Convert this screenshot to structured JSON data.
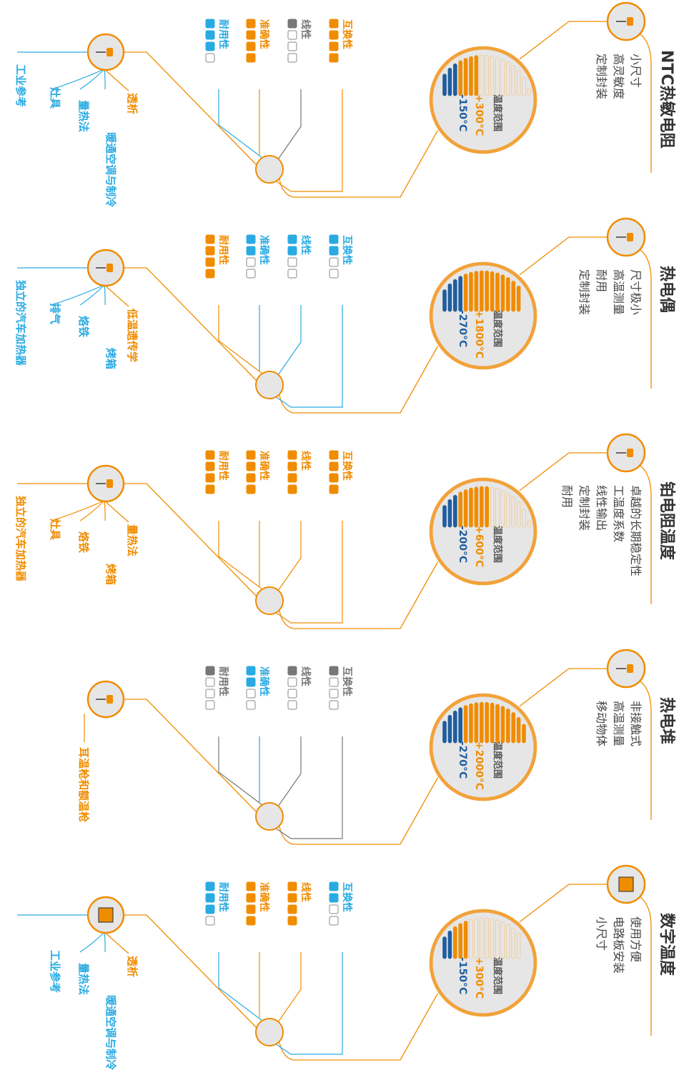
{
  "colors": {
    "orange": "#F08C00",
    "blue": "#29ABE2",
    "dark_blue": "#1F5DA0",
    "gray": "#777777",
    "light_orange": "#F5C98A",
    "light_circle": "#E6E6E6",
    "ring": "#F2A23A"
  },
  "rating_labels": {
    "interchangeability": "互换性",
    "linearity": "线性",
    "accuracy": "准确性",
    "durability": "耐用性"
  },
  "range_label": "温度范围",
  "sensors": [
    {
      "name": "NTC热敏电阻",
      "features": [
        "小尺寸",
        "高灵敏度",
        "定制封装"
      ],
      "icon": "ntc-thermistor-icon",
      "range_max": "+300°C",
      "range_min": "-150°C",
      "range_bars": {
        "blue": 3,
        "orange": 4,
        "empty": 10
      },
      "ratings": [
        {
          "key": "interchangeability",
          "color": "orange",
          "filled": 4
        },
        {
          "key": "linearity",
          "color": "gray",
          "filled": 1
        },
        {
          "key": "accuracy",
          "color": "orange",
          "filled": 4
        },
        {
          "key": "durability",
          "color": "blue",
          "filled": 3
        }
      ],
      "applications": [
        {
          "text": "透析",
          "color": "orange"
        },
        {
          "text": "暖通空调与制冷",
          "color": "blue"
        },
        {
          "text": "量热法",
          "color": "blue"
        },
        {
          "text": "灶具",
          "color": "blue"
        },
        {
          "text": "工业参考",
          "color": "blue"
        }
      ]
    },
    {
      "name": "热电偶",
      "features": [
        "尺寸极小",
        "高温测量",
        "耐用",
        "定制封装"
      ],
      "icon": "thermocouple-icon",
      "range_max": "+1800°C",
      "range_min": "-270°C",
      "range_bars": {
        "blue": 4,
        "orange": 11,
        "empty": 0
      },
      "ratings": [
        {
          "key": "interchangeability",
          "color": "blue",
          "filled": 2
        },
        {
          "key": "linearity",
          "color": "blue",
          "filled": 2
        },
        {
          "key": "accuracy",
          "color": "blue",
          "filled": 2
        },
        {
          "key": "durability",
          "color": "orange",
          "filled": 4
        }
      ],
      "applications": [
        {
          "text": "低温遗传学",
          "color": "orange"
        },
        {
          "text": "烤箱",
          "color": "blue"
        },
        {
          "text": "烙铁",
          "color": "blue"
        },
        {
          "text": "排气",
          "color": "blue"
        },
        {
          "text": "独立的汽车加热器",
          "color": "blue"
        }
      ]
    },
    {
      "name": "铂电阻温度",
      "features": [
        "卓越的长期稳定性",
        "工温度系数",
        "线性输出",
        "定制封装",
        "耐用"
      ],
      "icon": "platinum-rtd-icon",
      "range_max": "+600°C",
      "range_min": "-200°C",
      "range_bars": {
        "blue": 3,
        "orange": 6,
        "empty": 8
      },
      "ratings": [
        {
          "key": "interchangeability",
          "color": "orange",
          "filled": 4
        },
        {
          "key": "linearity",
          "color": "orange",
          "filled": 4
        },
        {
          "key": "accuracy",
          "color": "orange",
          "filled": 4
        },
        {
          "key": "durability",
          "color": "orange",
          "filled": 4
        }
      ],
      "applications": [
        {
          "text": "量热法",
          "color": "orange"
        },
        {
          "text": "烤箱",
          "color": "orange"
        },
        {
          "text": "烙铁",
          "color": "orange"
        },
        {
          "text": "灶具",
          "color": "orange"
        },
        {
          "text": "独立的汽车加热器",
          "color": "orange"
        }
      ]
    },
    {
      "name": "热电堆",
      "features": [
        "非接触式",
        "高温测量",
        "移动物体"
      ],
      "icon": "thermopile-icon",
      "range_max": "+2000°C",
      "range_min": "-270°C",
      "range_bars": {
        "blue": 4,
        "orange": 12,
        "empty": 0
      },
      "ratings": [
        {
          "key": "interchangeability",
          "color": "gray",
          "filled": 1
        },
        {
          "key": "linearity",
          "color": "gray",
          "filled": 1
        },
        {
          "key": "accuracy",
          "color": "blue",
          "filled": 2
        },
        {
          "key": "durability",
          "color": "gray",
          "filled": 1
        }
      ],
      "applications": [
        {
          "text": "耳温枪和额温枪",
          "color": "orange"
        }
      ]
    },
    {
      "name": "数字温度",
      "features": [
        "使用方便",
        "电路板安装",
        "小尺寸"
      ],
      "icon": "digital-sensor-chip-icon",
      "range_max": "+300°C",
      "range_min": "-150°C",
      "range_bars": {
        "blue": 2,
        "orange": 3,
        "empty": 10
      },
      "ratings": [
        {
          "key": "interchangeability",
          "color": "blue",
          "filled": 2
        },
        {
          "key": "linearity",
          "color": "orange",
          "filled": 4
        },
        {
          "key": "accuracy",
          "color": "orange",
          "filled": 4
        },
        {
          "key": "durability",
          "color": "blue",
          "filled": 3
        }
      ],
      "applications": [
        {
          "text": "透析",
          "color": "orange"
        },
        {
          "text": "暖通空调与制冷",
          "color": "blue"
        },
        {
          "text": "量热法",
          "color": "blue"
        },
        {
          "text": "工业参考",
          "color": "blue"
        }
      ]
    }
  ]
}
